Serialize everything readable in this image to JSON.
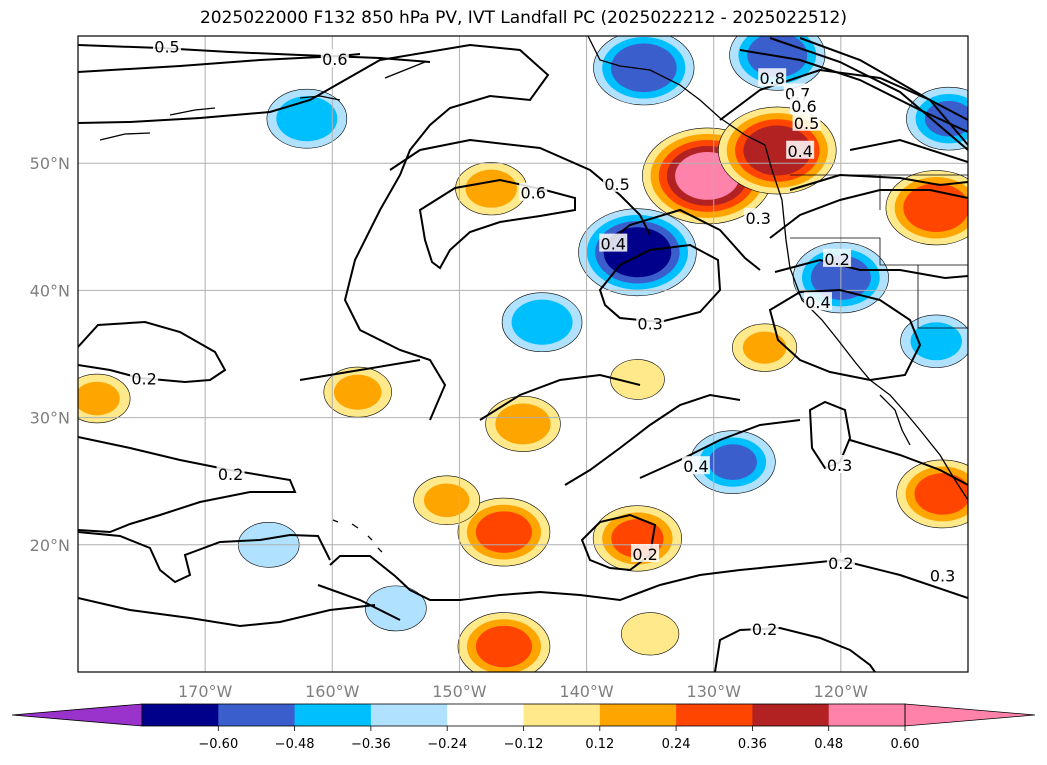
{
  "title": "2025022000 F132 850 hPa PV, IVT Landfall PC (2025022212 - 2025022512)",
  "map": {
    "lon_range": [
      180,
      110
    ],
    "lat_range": [
      10,
      60
    ],
    "lon_ticks": [
      {
        "lon": 170,
        "label": "170°W"
      },
      {
        "lon": 160,
        "label": "160°W"
      },
      {
        "lon": 150,
        "label": "150°W"
      },
      {
        "lon": 140,
        "label": "140°W"
      },
      {
        "lon": 130,
        "label": "130°W"
      },
      {
        "lon": 120,
        "label": "120°W"
      }
    ],
    "lat_ticks": [
      {
        "lat": 50,
        "label": "50°N"
      },
      {
        "lat": 40,
        "label": "40°N"
      },
      {
        "lat": 30,
        "label": "30°N"
      },
      {
        "lat": 20,
        "label": "20°N"
      }
    ],
    "grid": true
  },
  "colorbar": {
    "extend": "both",
    "colors": [
      "#9933cc",
      "#00008b",
      "#3a5fcd",
      "#00bfff",
      "#b0e2ff",
      "#ffffff",
      "#ffe98a",
      "#ffa500",
      "#ff4500",
      "#b22222",
      "#ff82ab",
      "#ff82ab"
    ],
    "tick_labels": [
      "−0.60",
      "−0.48",
      "−0.36",
      "−0.24",
      "−0.12",
      "0.12",
      "0.24",
      "0.36",
      "0.48",
      "0.60"
    ]
  },
  "contour_labels": [
    {
      "text": "0.5",
      "lon": 173.0,
      "lat": 59.1
    },
    {
      "text": "0.6",
      "lon": 159.8,
      "lat": 58.1
    },
    {
      "text": "0.8",
      "lon": 125.4,
      "lat": 56.6
    },
    {
      "text": "0.7",
      "lon": 123.4,
      "lat": 55.4
    },
    {
      "text": "0.6",
      "lon": 122.9,
      "lat": 54.4
    },
    {
      "text": "0.5",
      "lon": 122.7,
      "lat": 53.1
    },
    {
      "text": "0.4",
      "lon": 123.2,
      "lat": 50.9
    },
    {
      "text": "0.6",
      "lon": 144.2,
      "lat": 47.6
    },
    {
      "text": "0.5",
      "lon": 137.6,
      "lat": 48.3
    },
    {
      "text": "0.4",
      "lon": 137.9,
      "lat": 43.6
    },
    {
      "text": "0.3",
      "lon": 126.5,
      "lat": 45.6
    },
    {
      "text": "0.2",
      "lon": 120.3,
      "lat": 42.4
    },
    {
      "text": "0.4",
      "lon": 121.8,
      "lat": 39.0
    },
    {
      "text": "0.3",
      "lon": 135.0,
      "lat": 37.3
    },
    {
      "text": "0.2",
      "lon": 174.8,
      "lat": 33.0
    },
    {
      "text": "0.4",
      "lon": 131.4,
      "lat": 26.1
    },
    {
      "text": "0.3",
      "lon": 120.1,
      "lat": 26.2
    },
    {
      "text": "0.2",
      "lon": 168.0,
      "lat": 25.5
    },
    {
      "text": "0.2",
      "lon": 135.4,
      "lat": 19.2
    },
    {
      "text": "0.2",
      "lon": 120.0,
      "lat": 18.5
    },
    {
      "text": "0.3",
      "lon": 112.0,
      "lat": 17.5
    },
    {
      "text": "0.2",
      "lon": 126.0,
      "lat": 13.3
    }
  ],
  "anomalies": [
    {
      "lon": 130.5,
      "lat": 49.0,
      "value": 0.62
    },
    {
      "lon": 125.0,
      "lat": 51.0,
      "value": 0.55
    },
    {
      "lon": 112.5,
      "lat": 46.5,
      "value": 0.45
    },
    {
      "lon": 112.0,
      "lat": 24.0,
      "value": 0.4
    },
    {
      "lon": 146.5,
      "lat": 21.0,
      "value": 0.4
    },
    {
      "lon": 146.5,
      "lat": 12.0,
      "value": 0.4
    },
    {
      "lon": 136.0,
      "lat": 20.5,
      "value": 0.38
    },
    {
      "lon": 145.0,
      "lat": 29.5,
      "value": 0.3
    },
    {
      "lon": 147.5,
      "lat": 48.0,
      "value": 0.28
    },
    {
      "lon": 158.0,
      "lat": 32.0,
      "value": 0.26
    },
    {
      "lon": 178.5,
      "lat": 31.5,
      "value": 0.25
    },
    {
      "lon": 151.0,
      "lat": 23.5,
      "value": 0.25
    },
    {
      "lon": 126.0,
      "lat": 35.5,
      "value": 0.24
    },
    {
      "lon": 135.0,
      "lat": 13.0,
      "value": 0.2
    },
    {
      "lon": 136.0,
      "lat": 33.0,
      "value": 0.18
    },
    {
      "lon": 135.5,
      "lat": 57.5,
      "value": -0.45
    },
    {
      "lon": 125.0,
      "lat": 58.5,
      "value": -0.42
    },
    {
      "lon": 136.0,
      "lat": 43.0,
      "value": -0.55
    },
    {
      "lon": 120.0,
      "lat": 41.0,
      "value": -0.42
    },
    {
      "lon": 162.0,
      "lat": 53.5,
      "value": -0.33
    },
    {
      "lon": 143.5,
      "lat": 37.5,
      "value": -0.33
    },
    {
      "lon": 128.5,
      "lat": 26.5,
      "value": -0.36
    },
    {
      "lon": 111.5,
      "lat": 53.5,
      "value": -0.36
    },
    {
      "lon": 112.5,
      "lat": 36.0,
      "value": -0.28
    },
    {
      "lon": 165.0,
      "lat": 20.0,
      "value": -0.22
    },
    {
      "lon": 155.0,
      "lat": 15.0,
      "value": -0.22
    }
  ]
}
